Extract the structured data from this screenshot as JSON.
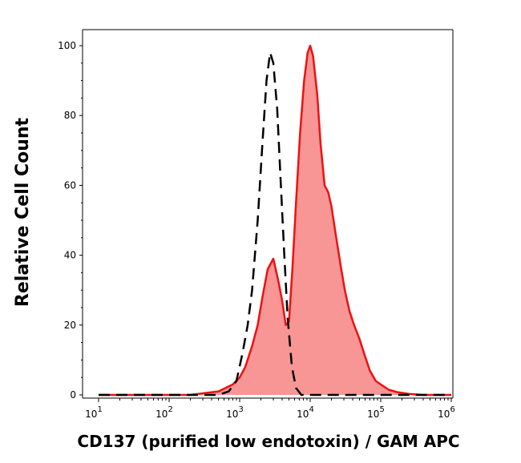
{
  "chart_data": {
    "type": "area",
    "title": "",
    "xlabel": "CD137 (purified low endotoxin) / GAM APC",
    "ylabel": "Relative Cell Count",
    "x_scale": "log",
    "xlim": [
      10,
      1000000
    ],
    "ylim": [
      0,
      100
    ],
    "x_ticks": [
      {
        "value": 10,
        "base": "10",
        "exp": "1"
      },
      {
        "value": 100,
        "base": "10",
        "exp": "2"
      },
      {
        "value": 1000,
        "base": "10",
        "exp": "3"
      },
      {
        "value": 10000,
        "base": "10",
        "exp": "4"
      },
      {
        "value": 100000,
        "base": "10",
        "exp": "5"
      },
      {
        "value": 1000000,
        "base": "10",
        "exp": "6"
      }
    ],
    "y_ticks": [
      "0",
      "20",
      "40",
      "60",
      "80",
      "100"
    ],
    "series": [
      {
        "style": "dashed",
        "color": "#000000",
        "points": [
          [
            10,
            0
          ],
          [
            500,
            0
          ],
          [
            700,
            1
          ],
          [
            900,
            4
          ],
          [
            1100,
            12
          ],
          [
            1300,
            20
          ],
          [
            1500,
            30
          ],
          [
            1800,
            50
          ],
          [
            2100,
            72
          ],
          [
            2400,
            90
          ],
          [
            2700,
            98
          ],
          [
            3000,
            95
          ],
          [
            3400,
            82
          ],
          [
            3800,
            62
          ],
          [
            4300,
            40
          ],
          [
            4800,
            22
          ],
          [
            5500,
            8
          ],
          [
            6300,
            2
          ],
          [
            7500,
            0
          ],
          [
            20000,
            0
          ],
          [
            1000000,
            0
          ]
        ]
      },
      {
        "style": "filled",
        "color": "#ee1111",
        "fill": "#f89595",
        "points": [
          [
            10,
            0
          ],
          [
            200,
            0
          ],
          [
            500,
            1
          ],
          [
            800,
            3
          ],
          [
            1000,
            5
          ],
          [
            1200,
            8
          ],
          [
            1500,
            14
          ],
          [
            1800,
            20
          ],
          [
            2100,
            28
          ],
          [
            2500,
            36
          ],
          [
            3000,
            39
          ],
          [
            3500,
            33
          ],
          [
            4000,
            27
          ],
          [
            4500,
            20
          ],
          [
            5000,
            21
          ],
          [
            5600,
            36
          ],
          [
            6300,
            55
          ],
          [
            7200,
            75
          ],
          [
            8200,
            90
          ],
          [
            9200,
            98
          ],
          [
            10000,
            100
          ],
          [
            11000,
            97
          ],
          [
            12600,
            86
          ],
          [
            14000,
            72
          ],
          [
            16000,
            60
          ],
          [
            18000,
            58
          ],
          [
            20000,
            54
          ],
          [
            23000,
            46
          ],
          [
            27000,
            37
          ],
          [
            31000,
            30
          ],
          [
            36000,
            24
          ],
          [
            42000,
            20
          ],
          [
            50000,
            16
          ],
          [
            60000,
            11
          ],
          [
            70000,
            7
          ],
          [
            85000,
            4
          ],
          [
            100000,
            3
          ],
          [
            130000,
            1.5
          ],
          [
            170000,
            0.8
          ],
          [
            250000,
            0.3
          ],
          [
            400000,
            0
          ],
          [
            1000000,
            0
          ]
        ]
      }
    ]
  }
}
